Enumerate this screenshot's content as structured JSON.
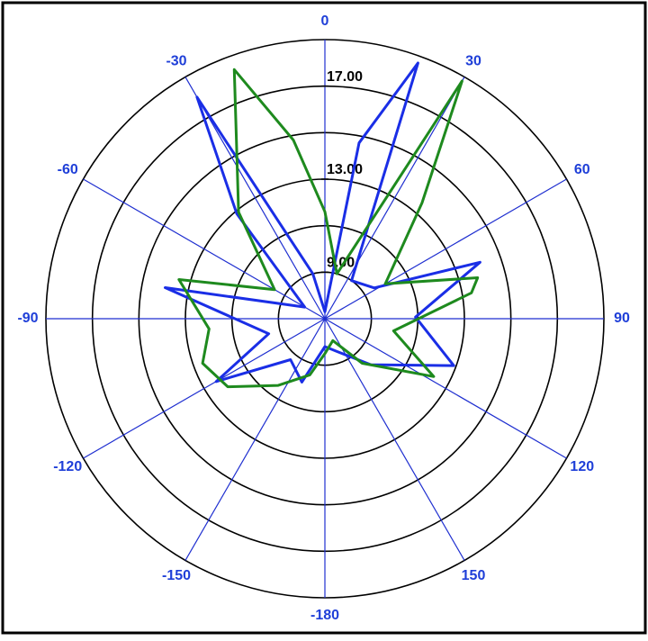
{
  "chart_data": {
    "type": "polar",
    "theta_direction": "clockwise",
    "theta_zero": "top",
    "thetaticks": [
      0,
      30,
      60,
      90,
      120,
      150,
      -180,
      -150,
      -120,
      -90,
      -60,
      -30
    ],
    "rlim": [
      7,
      19
    ],
    "rgrid": [
      9,
      11,
      13,
      15,
      17,
      19
    ],
    "rticks": [
      {
        "value": 9,
        "label": "9.00"
      },
      {
        "value": 13,
        "label": "13.00"
      },
      {
        "value": 17,
        "label": "17.00"
      }
    ],
    "grid_color": "#1f2fd0",
    "ring_color": "#000000",
    "tick_label_color": "#1f3fd8",
    "closed": true,
    "series": [
      {
        "color": "#1a2ee6",
        "theta": [
          -180,
          -160,
          -140,
          -120,
          -105,
          -79,
          -60,
          -40,
          -30,
          -15,
          0,
          11,
          20,
          35,
          58,
          70,
          89,
          110,
          135,
          160
        ],
        "values": [
          8.2,
          9.9,
          9.3,
          12.4,
          9.5,
          14.0,
          8.0,
          12.9,
          18.0,
          9.0,
          7.3,
          14.7,
          18.7,
          9.0,
          9.5,
          14.1,
          10.9,
          12.9,
          9.8,
          8.5
        ]
      },
      {
        "color": "#1e8a1e",
        "theta": [
          -180,
          -165,
          -145,
          -125,
          -110,
          -95,
          -75,
          -60,
          -39,
          -20,
          -10,
          0,
          15,
          30,
          40,
          60,
          75,
          80,
          100,
          118,
          140,
          160
        ],
        "values": [
          8.5,
          9.5,
          10.5,
          12.1,
          12.6,
          12.0,
          13.5,
          9.5,
          12.9,
          18.4,
          14.8,
          11.6,
          9.0,
          18.8,
          13.5,
          10.0,
          13.8,
          13.4,
          10.0,
          12.3,
          9.5,
          8.0
        ]
      }
    ]
  }
}
